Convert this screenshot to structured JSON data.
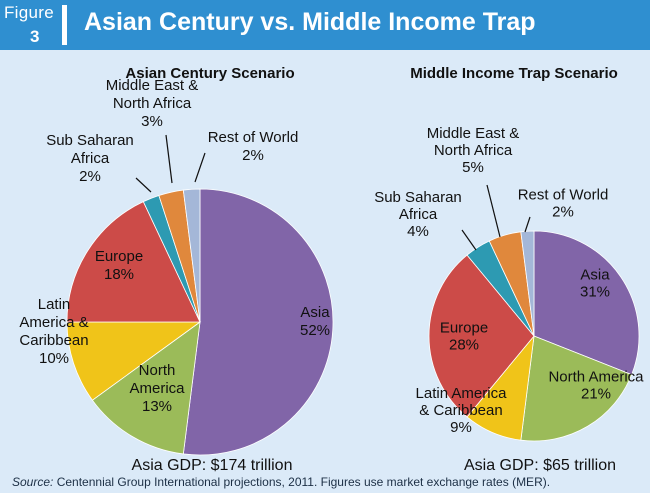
{
  "figure": {
    "label": "Figure",
    "number": "3"
  },
  "title": "Asian Century vs. Middle Income Trap",
  "source": {
    "prefix": "Source:",
    "text": " Centennial Group International projections, 2011. Figures use market exchange rates (MER)."
  },
  "colors": {
    "header": "#2f8fd0",
    "background": "#dbeaf8",
    "Asia": "#8165a8",
    "North America": "#9bbb59",
    "Latin America & Caribbean": "#f0c419",
    "Europe": "#cc4b48",
    "Sub Saharan Africa": "#2d9ab2",
    "Middle East & North Africa": "#e0883c",
    "Rest of World": "#a4b7d8"
  },
  "chart_data": [
    {
      "type": "pie",
      "title": "Asian Century Scenario",
      "footer": "Asia GDP: $174 trillion",
      "slices": [
        {
          "name": "Asia",
          "value": 52,
          "label_lines": [
            "Asia",
            "52%"
          ]
        },
        {
          "name": "North America",
          "value": 13,
          "label_lines": [
            "North",
            "America",
            "13%"
          ]
        },
        {
          "name": "Latin America & Caribbean",
          "value": 10,
          "label_lines": [
            "Latin",
            "America &",
            "Caribbean",
            "10%"
          ]
        },
        {
          "name": "Europe",
          "value": 18,
          "label_lines": [
            "Europe",
            "18%"
          ]
        },
        {
          "name": "Sub Saharan Africa",
          "value": 2,
          "label_lines": [
            "Sub Saharan",
            "Africa",
            "2%"
          ]
        },
        {
          "name": "Middle East & North Africa",
          "value": 3,
          "label_lines": [
            "Middle East &",
            "North Africa",
            "3%"
          ]
        },
        {
          "name": "Rest of World",
          "value": 2,
          "label_lines": [
            "Rest of World",
            "2%"
          ]
        }
      ]
    },
    {
      "type": "pie",
      "title": "Middle Income Trap Scenario",
      "footer": "Asia GDP: $65 trillion",
      "slices": [
        {
          "name": "Asia",
          "value": 31,
          "label_lines": [
            "Asia",
            "31%"
          ]
        },
        {
          "name": "North America",
          "value": 21,
          "label_lines": [
            "North America",
            "21%"
          ]
        },
        {
          "name": "Latin America & Caribbean",
          "value": 9,
          "label_lines": [
            "Latin America",
            "& Caribbean",
            "9%"
          ]
        },
        {
          "name": "Europe",
          "value": 28,
          "label_lines": [
            "Europe",
            "28%"
          ]
        },
        {
          "name": "Sub Saharan Africa",
          "value": 4,
          "label_lines": [
            "Sub Saharan",
            "Africa",
            "4%"
          ]
        },
        {
          "name": "Middle East & North Africa",
          "value": 5,
          "label_lines": [
            "Middle East &",
            "North Africa",
            "5%"
          ]
        },
        {
          "name": "Rest of World",
          "value": 2,
          "label_lines": [
            "Rest of World",
            "2%"
          ]
        }
      ]
    }
  ]
}
